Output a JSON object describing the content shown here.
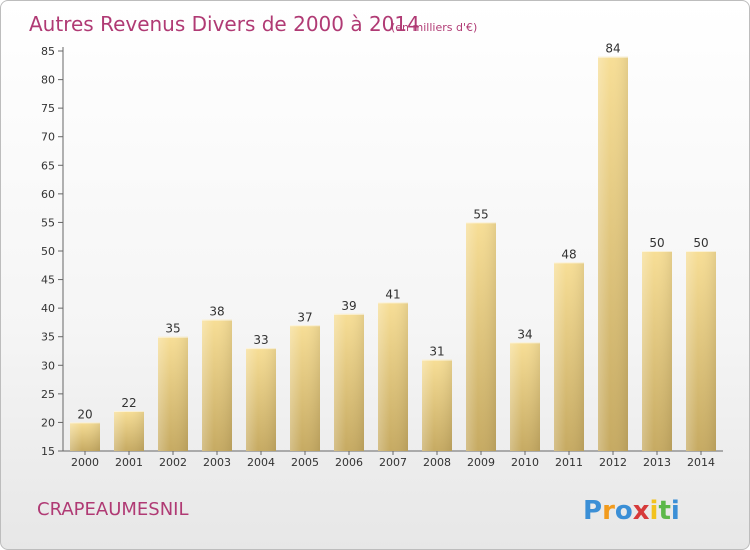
{
  "chart_data": {
    "type": "bar",
    "title": "Autres Revenus Divers de 2000 à 2014",
    "subtitle": "(en milliers d'€)",
    "categories": [
      "2000",
      "2001",
      "2002",
      "2003",
      "2004",
      "2005",
      "2006",
      "2007",
      "2008",
      "2009",
      "2010",
      "2011",
      "2012",
      "2013",
      "2014"
    ],
    "values": [
      20,
      22,
      35,
      38,
      33,
      37,
      39,
      41,
      31,
      55,
      34,
      48,
      84,
      50,
      50
    ],
    "ylim": [
      15,
      85
    ],
    "yticks": [
      15,
      20,
      25,
      30,
      35,
      40,
      45,
      50,
      55,
      60,
      65,
      70,
      75,
      80,
      85
    ],
    "grid": false,
    "bar_color": "#e8c97e"
  },
  "footer": {
    "place": "CRAPEAUMESNIL",
    "brand_letters": [
      "P",
      "r",
      "o",
      "x",
      "i",
      "t",
      "i"
    ],
    "brand_colors": [
      "#3b8fd6",
      "#f29b1d",
      "#3b8fd6",
      "#d63a3a",
      "#f2c21d",
      "#5cb84a",
      "#3b8fd6"
    ]
  }
}
